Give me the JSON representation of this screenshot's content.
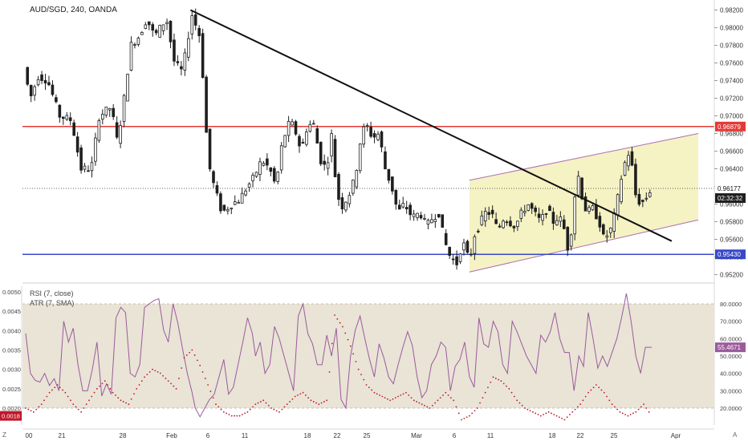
{
  "header": {
    "symbol": "AUD/SGD, 240, OANDA"
  },
  "colors": {
    "candle_body": "#1f1f1f",
    "trendline": "#111111",
    "resistance": "#e53935",
    "support": "#3848c8",
    "channel_fill": "#f3f0b8",
    "channel_edge": "#a970b3",
    "rsi_line": "#9b5a9c",
    "rsi_band": "#e9e4d6",
    "atr_dots": "#c0182a",
    "price_label_bg": "#1f1f1f"
  },
  "price_axis": {
    "ticks": [
      "0.98200",
      "0.98000",
      "0.97800",
      "0.97600",
      "0.97400",
      "0.97200",
      "0.97000",
      "0.96800",
      "0.96600",
      "0.96400",
      "0.96200",
      "0.96000",
      "0.95800",
      "0.95600",
      "0.95400",
      "0.95200"
    ],
    "min": 0.9515,
    "max": 0.9825
  },
  "price_labels": {
    "resistance": "0.96879",
    "current": "0.96177",
    "countdown": "02:32:32",
    "support": "0.95430"
  },
  "indicator_panel": {
    "rsi_label": "RSI (7, close)",
    "atr_label": "ATR (7, SMA)",
    "left_ticks": [
      "0.0050",
      "0.0045",
      "0.0040",
      "0.0035",
      "0.0030",
      "0.0025",
      "0.0020"
    ],
    "right_ticks": [
      "80.0000",
      "70.0000",
      "60.0000",
      "50.0000",
      "40.0000",
      "30.0000",
      "20.0000"
    ],
    "rsi_value": "55.4671",
    "atr_value": "0.0018"
  },
  "time_axis": {
    "labels": [
      "00",
      "21",
      "28",
      "Feb",
      "6",
      "11",
      "18",
      "22",
      "25",
      "Mar",
      "6",
      "11",
      "18",
      "22",
      "25",
      "Apr"
    ]
  },
  "corner_labels": {
    "left": "Z",
    "right": "A"
  },
  "chart_data": {
    "type": "candlestick",
    "title": "AUD/SGD, 240, OANDA",
    "ylim": [
      0.9515,
      0.9825
    ],
    "levels": {
      "resistance": 0.96879,
      "current": 0.96177,
      "support": 0.9543
    },
    "trendline": {
      "from": 0.982,
      "to": 0.9558
    },
    "channel": {
      "lower_start": 0.9523,
      "lower_end": 0.9582,
      "upper_start": 0.9627,
      "upper_end": 0.968
    },
    "price_path": [
      [
        0,
        0.9755
      ],
      [
        8,
        0.972
      ],
      [
        18,
        0.9745
      ],
      [
        30,
        0.974
      ],
      [
        45,
        0.97
      ],
      [
        60,
        0.9695
      ],
      [
        72,
        0.964
      ],
      [
        85,
        0.964
      ],
      [
        95,
        0.97
      ],
      [
        110,
        0.971
      ],
      [
        118,
        0.967
      ],
      [
        125,
        0.971
      ],
      [
        135,
        0.978
      ],
      [
        145,
        0.979
      ],
      [
        155,
        0.981
      ],
      [
        165,
        0.979
      ],
      [
        172,
        0.98
      ],
      [
        180,
        0.981
      ],
      [
        190,
        0.976
      ],
      [
        200,
        0.975
      ],
      [
        212,
        0.9815
      ],
      [
        222,
        0.979
      ],
      [
        228,
        0.972
      ],
      [
        232,
        0.965
      ],
      [
        240,
        0.962
      ],
      [
        250,
        0.959
      ],
      [
        262,
        0.96
      ],
      [
        272,
        0.9605
      ],
      [
        282,
        0.962
      ],
      [
        290,
        0.963
      ],
      [
        300,
        0.965
      ],
      [
        310,
        0.964
      ],
      [
        318,
        0.962
      ],
      [
        326,
        0.967
      ],
      [
        334,
        0.969
      ],
      [
        340,
        0.969
      ],
      [
        350,
        0.966
      ],
      [
        358,
        0.969
      ],
      [
        366,
        0.969
      ],
      [
        374,
        0.965
      ],
      [
        382,
        0.964
      ],
      [
        388,
        0.968
      ],
      [
        394,
        0.962
      ],
      [
        400,
        0.9595
      ],
      [
        410,
        0.961
      ],
      [
        418,
        0.963
      ],
      [
        426,
        0.968
      ],
      [
        432,
        0.969
      ],
      [
        440,
        0.9675
      ],
      [
        448,
        0.968
      ],
      [
        456,
        0.964
      ],
      [
        464,
        0.962
      ],
      [
        472,
        0.959
      ],
      [
        480,
        0.96
      ],
      [
        490,
        0.9585
      ],
      [
        500,
        0.959
      ],
      [
        508,
        0.9575
      ],
      [
        516,
        0.9585
      ],
      [
        524,
        0.959
      ],
      [
        530,
        0.956
      ],
      [
        538,
        0.954
      ],
      [
        546,
        0.9532
      ],
      [
        552,
        0.9552
      ],
      [
        558,
        0.9555
      ],
      [
        562,
        0.9525
      ],
      [
        566,
        0.956
      ],
      [
        574,
        0.9575
      ],
      [
        582,
        0.959
      ],
      [
        590,
        0.959
      ],
      [
        598,
        0.957
      ],
      [
        606,
        0.9585
      ],
      [
        612,
        0.958
      ],
      [
        620,
        0.9575
      ],
      [
        628,
        0.959
      ],
      [
        636,
        0.96
      ],
      [
        644,
        0.959
      ],
      [
        652,
        0.958
      ],
      [
        660,
        0.9595
      ],
      [
        668,
        0.958
      ],
      [
        674,
        0.9585
      ],
      [
        680,
        0.958
      ],
      [
        686,
        0.955
      ],
      [
        692,
        0.9575
      ],
      [
        698,
        0.964
      ],
      [
        704,
        0.961
      ],
      [
        710,
        0.959
      ],
      [
        718,
        0.9595
      ],
      [
        726,
        0.958
      ],
      [
        732,
        0.956
      ],
      [
        740,
        0.957
      ],
      [
        746,
        0.959
      ],
      [
        754,
        0.963
      ],
      [
        762,
        0.966
      ],
      [
        768,
        0.964
      ],
      [
        772,
        0.961
      ],
      [
        778,
        0.96
      ],
      [
        784,
        0.9605
      ],
      [
        790,
        0.9615
      ]
    ],
    "rsi_path": [
      [
        0,
        63
      ],
      [
        6,
        40
      ],
      [
        12,
        36
      ],
      [
        18,
        35
      ],
      [
        24,
        40
      ],
      [
        30,
        33
      ],
      [
        36,
        37
      ],
      [
        42,
        30
      ],
      [
        48,
        70
      ],
      [
        54,
        58
      ],
      [
        60,
        66
      ],
      [
        66,
        45
      ],
      [
        72,
        30
      ],
      [
        78,
        30
      ],
      [
        84,
        42
      ],
      [
        90,
        58
      ],
      [
        96,
        27
      ],
      [
        102,
        34
      ],
      [
        108,
        28
      ],
      [
        114,
        72
      ],
      [
        120,
        78
      ],
      [
        126,
        75
      ],
      [
        132,
        40
      ],
      [
        138,
        38
      ],
      [
        144,
        45
      ],
      [
        150,
        78
      ],
      [
        156,
        80
      ],
      [
        162,
        82
      ],
      [
        168,
        83
      ],
      [
        174,
        65
      ],
      [
        180,
        58
      ],
      [
        186,
        80
      ],
      [
        192,
        69
      ],
      [
        198,
        54
      ],
      [
        204,
        40
      ],
      [
        210,
        29
      ],
      [
        214,
        20
      ],
      [
        220,
        15
      ],
      [
        226,
        20
      ],
      [
        232,
        25
      ],
      [
        238,
        28
      ],
      [
        244,
        38
      ],
      [
        250,
        48
      ],
      [
        256,
        28
      ],
      [
        262,
        32
      ],
      [
        268,
        45
      ],
      [
        274,
        58
      ],
      [
        280,
        72
      ],
      [
        286,
        63
      ],
      [
        290,
        50
      ],
      [
        296,
        58
      ],
      [
        302,
        40
      ],
      [
        308,
        45
      ],
      [
        314,
        67
      ],
      [
        320,
        60
      ],
      [
        326,
        50
      ],
      [
        332,
        40
      ],
      [
        338,
        30
      ],
      [
        344,
        73
      ],
      [
        350,
        80
      ],
      [
        356,
        63
      ],
      [
        362,
        57
      ],
      [
        368,
        45
      ],
      [
        374,
        45
      ],
      [
        380,
        62
      ],
      [
        386,
        50
      ],
      [
        392,
        66
      ],
      [
        398,
        25
      ],
      [
        404,
        20
      ],
      [
        410,
        50
      ],
      [
        416,
        65
      ],
      [
        422,
        73
      ],
      [
        428,
        60
      ],
      [
        434,
        48
      ],
      [
        440,
        38
      ],
      [
        446,
        57
      ],
      [
        452,
        49
      ],
      [
        458,
        38
      ],
      [
        464,
        34
      ],
      [
        470,
        45
      ],
      [
        476,
        55
      ],
      [
        482,
        64
      ],
      [
        488,
        56
      ],
      [
        494,
        38
      ],
      [
        500,
        26
      ],
      [
        506,
        30
      ],
      [
        512,
        45
      ],
      [
        518,
        50
      ],
      [
        524,
        58
      ],
      [
        530,
        55
      ],
      [
        536,
        30
      ],
      [
        542,
        44
      ],
      [
        548,
        48
      ],
      [
        554,
        58
      ],
      [
        560,
        38
      ],
      [
        566,
        32
      ],
      [
        572,
        72
      ],
      [
        578,
        57
      ],
      [
        584,
        55
      ],
      [
        590,
        70
      ],
      [
        596,
        64
      ],
      [
        602,
        45
      ],
      [
        608,
        40
      ],
      [
        614,
        70
      ],
      [
        620,
        64
      ],
      [
        626,
        57
      ],
      [
        632,
        50
      ],
      [
        638,
        45
      ],
      [
        644,
        40
      ],
      [
        650,
        62
      ],
      [
        656,
        58
      ],
      [
        662,
        64
      ],
      [
        668,
        75
      ],
      [
        674,
        60
      ],
      [
        680,
        52
      ],
      [
        686,
        52
      ],
      [
        692,
        30
      ],
      [
        698,
        50
      ],
      [
        704,
        44
      ],
      [
        710,
        75
      ],
      [
        716,
        60
      ],
      [
        722,
        43
      ],
      [
        728,
        50
      ],
      [
        734,
        44
      ],
      [
        740,
        52
      ],
      [
        746,
        60
      ],
      [
        752,
        72
      ],
      [
        758,
        86
      ],
      [
        764,
        70
      ],
      [
        770,
        50
      ],
      [
        776,
        40
      ],
      [
        782,
        55
      ],
      [
        790,
        55
      ]
    ],
    "atr_path": [
      [
        0,
        0.002
      ],
      [
        10,
        0.0019
      ],
      [
        20,
        0.0021
      ],
      [
        30,
        0.0024
      ],
      [
        40,
        0.0026
      ],
      [
        50,
        0.0024
      ],
      [
        60,
        0.0021
      ],
      [
        70,
        0.0019
      ],
      [
        80,
        0.0022
      ],
      [
        90,
        0.0025
      ],
      [
        100,
        0.0027
      ],
      [
        110,
        0.0024
      ],
      [
        120,
        0.0022
      ],
      [
        130,
        0.0021
      ],
      [
        140,
        0.0025
      ],
      [
        150,
        0.0028
      ],
      [
        160,
        0.003
      ],
      [
        170,
        0.0029
      ],
      [
        180,
        0.0027
      ],
      [
        190,
        0.0025
      ],
      [
        200,
        0.0033
      ],
      [
        210,
        0.0035
      ],
      [
        220,
        0.0031
      ],
      [
        230,
        0.0026
      ],
      [
        240,
        0.0021
      ],
      [
        250,
        0.0019
      ],
      [
        260,
        0.0018
      ],
      [
        270,
        0.0018
      ],
      [
        280,
        0.0019
      ],
      [
        290,
        0.0021
      ],
      [
        300,
        0.0022
      ],
      [
        310,
        0.002
      ],
      [
        320,
        0.0019
      ],
      [
        330,
        0.0021
      ],
      [
        340,
        0.0023
      ],
      [
        350,
        0.0024
      ],
      [
        360,
        0.0022
      ],
      [
        370,
        0.0021
      ],
      [
        380,
        0.0022
      ],
      [
        390,
        0.0044
      ],
      [
        400,
        0.0041
      ],
      [
        410,
        0.0036
      ],
      [
        420,
        0.003
      ],
      [
        430,
        0.0026
      ],
      [
        440,
        0.0024
      ],
      [
        450,
        0.0023
      ],
      [
        460,
        0.0022
      ],
      [
        470,
        0.0023
      ],
      [
        480,
        0.0024
      ],
      [
        490,
        0.0022
      ],
      [
        500,
        0.0021
      ],
      [
        510,
        0.002
      ],
      [
        520,
        0.0022
      ],
      [
        530,
        0.0024
      ],
      [
        540,
        0.0022
      ],
      [
        550,
        0.0017
      ],
      [
        560,
        0.0018
      ],
      [
        570,
        0.002
      ],
      [
        580,
        0.0024
      ],
      [
        590,
        0.0028
      ],
      [
        600,
        0.0027
      ],
      [
        610,
        0.0025
      ],
      [
        620,
        0.0022
      ],
      [
        630,
        0.002
      ],
      [
        640,
        0.0019
      ],
      [
        650,
        0.0018
      ],
      [
        660,
        0.0019
      ],
      [
        670,
        0.0018
      ],
      [
        680,
        0.0017
      ],
      [
        690,
        0.0019
      ],
      [
        700,
        0.0021
      ],
      [
        710,
        0.0024
      ],
      [
        720,
        0.0026
      ],
      [
        730,
        0.0024
      ],
      [
        740,
        0.0021
      ],
      [
        750,
        0.0019
      ],
      [
        760,
        0.0018
      ],
      [
        770,
        0.0019
      ],
      [
        780,
        0.0021
      ],
      [
        790,
        0.0018
      ]
    ]
  }
}
